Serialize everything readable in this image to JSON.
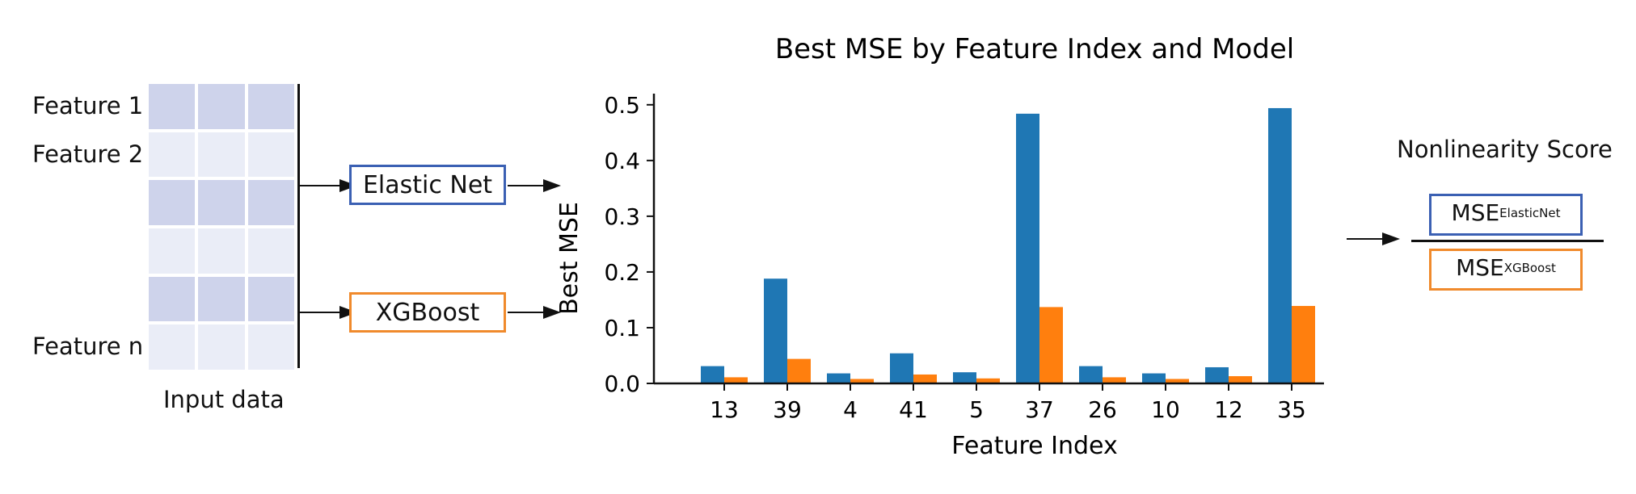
{
  "input": {
    "features": [
      "Feature 1",
      "Feature 2",
      "Feature n"
    ],
    "caption": "Input data"
  },
  "models": {
    "elastic_net": "Elastic Net",
    "xgboost": "XGBoost"
  },
  "score": {
    "title": "Nonlinearity Score",
    "numerator_base": "MSE",
    "numerator_sub": "ElasticNet",
    "denominator_base": "MSE",
    "denominator_sub": "XGBoost"
  },
  "colors": {
    "elastic_net": "#3b60b3",
    "xgboost": "#f08a2c",
    "bar_blue": "#1f77b4",
    "bar_orange": "#ff7f0e"
  },
  "chart_data": {
    "type": "bar",
    "title": "Best MSE by Feature Index and Model",
    "xlabel": "Feature Index",
    "ylabel": "Best MSE",
    "categories": [
      "13",
      "39",
      "4",
      "41",
      "5",
      "37",
      "26",
      "10",
      "12",
      "35"
    ],
    "series": [
      {
        "values": [
          0.031,
          0.188,
          0.018,
          0.054,
          0.02,
          0.484,
          0.031,
          0.018,
          0.029,
          0.494
        ]
      },
      {
        "values": [
          0.011,
          0.044,
          0.008,
          0.016,
          0.009,
          0.137,
          0.011,
          0.008,
          0.013,
          0.139
        ]
      }
    ],
    "ylim": [
      0,
      0.52
    ],
    "yticks": [
      "0.0",
      "0.1",
      "0.2",
      "0.3",
      "0.4",
      "0.5"
    ],
    "grid": false,
    "legend": "none"
  }
}
